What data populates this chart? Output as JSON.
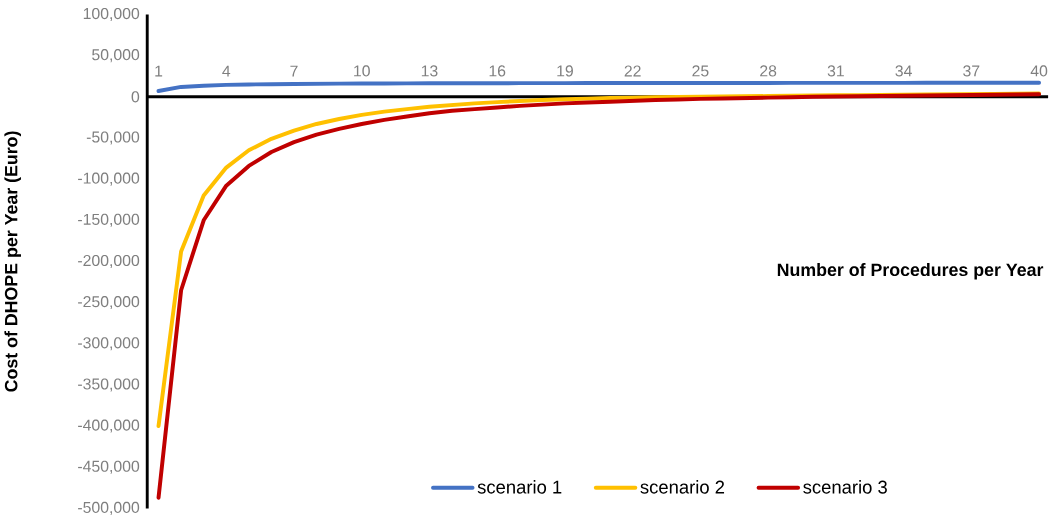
{
  "chart_data": {
    "type": "line",
    "xlabel": "Number of Procedures per Year",
    "ylabel": "Cost of DHOPE per Year (Euro)",
    "x": [
      1,
      2,
      3,
      4,
      5,
      6,
      7,
      8,
      9,
      10,
      11,
      12,
      13,
      14,
      15,
      16,
      17,
      18,
      19,
      20,
      21,
      22,
      23,
      24,
      25,
      26,
      27,
      28,
      29,
      30,
      31,
      32,
      33,
      34,
      35,
      36,
      37,
      38,
      39,
      40
    ],
    "series": [
      {
        "name": "scenario 1",
        "color": "#4472c4",
        "values": [
          7000,
          12000,
          13500,
          14500,
          15000,
          15300,
          15600,
          15800,
          16000,
          16100,
          16200,
          16300,
          16400,
          16400,
          16500,
          16500,
          16600,
          16600,
          16600,
          16700,
          16700,
          16700,
          16700,
          16800,
          16800,
          16800,
          16800,
          16800,
          16900,
          16900,
          16900,
          16900,
          16900,
          16900,
          17000,
          17000,
          17000,
          17000,
          17000,
          17000
        ]
      },
      {
        "name": "scenario 2",
        "color": "#ffc000",
        "values": [
          -400000,
          -188000,
          -120000,
          -86000,
          -65000,
          -51000,
          -41000,
          -33000,
          -27000,
          -22000,
          -18000,
          -15000,
          -12000,
          -10000,
          -8000,
          -6500,
          -5000,
          -4000,
          -3000,
          -2200,
          -1500,
          -1000,
          -500,
          -200,
          0,
          300,
          600,
          900,
          1200,
          1500,
          1800,
          2000,
          2300,
          2500,
          2800,
          3000,
          3200,
          3400,
          3700,
          4000
        ]
      },
      {
        "name": "scenario 3",
        "color": "#c00000",
        "values": [
          -487000,
          -235000,
          -150000,
          -108000,
          -84000,
          -67000,
          -55000,
          -46000,
          -39000,
          -33000,
          -28000,
          -24000,
          -20000,
          -17000,
          -15000,
          -13000,
          -11000,
          -9500,
          -8000,
          -7000,
          -6000,
          -5000,
          -4000,
          -3200,
          -2500,
          -2000,
          -1500,
          -1000,
          -500,
          0,
          300,
          600,
          900,
          1200,
          1500,
          1800,
          2100,
          2400,
          2700,
          3000
        ]
      }
    ],
    "xlim": [
      0.5,
      40.4
    ],
    "xticks": [
      1,
      4,
      7,
      10,
      13,
      16,
      19,
      22,
      25,
      28,
      31,
      34,
      37,
      40
    ],
    "ylim": [
      -500000,
      100000
    ],
    "yticks": [
      {
        "value": 100000,
        "label": "100,000"
      },
      {
        "value": 50000,
        "label": "50,000"
      },
      {
        "value": 0,
        "label": "0"
      },
      {
        "value": -50000,
        "label": "-50,000"
      },
      {
        "value": -100000,
        "label": "-100,000"
      },
      {
        "value": -150000,
        "label": "-150,000"
      },
      {
        "value": -200000,
        "label": "-200,000"
      },
      {
        "value": -250000,
        "label": "-250,000"
      },
      {
        "value": -300000,
        "label": "-300,000"
      },
      {
        "value": -350000,
        "label": "-350,000"
      },
      {
        "value": -400000,
        "label": "-400,000"
      },
      {
        "value": -450000,
        "label": "-450,000"
      },
      {
        "value": -500000,
        "label": "-500,000"
      }
    ],
    "grid": false,
    "legend": "bottom",
    "marker": "none",
    "line_style": "solid"
  }
}
